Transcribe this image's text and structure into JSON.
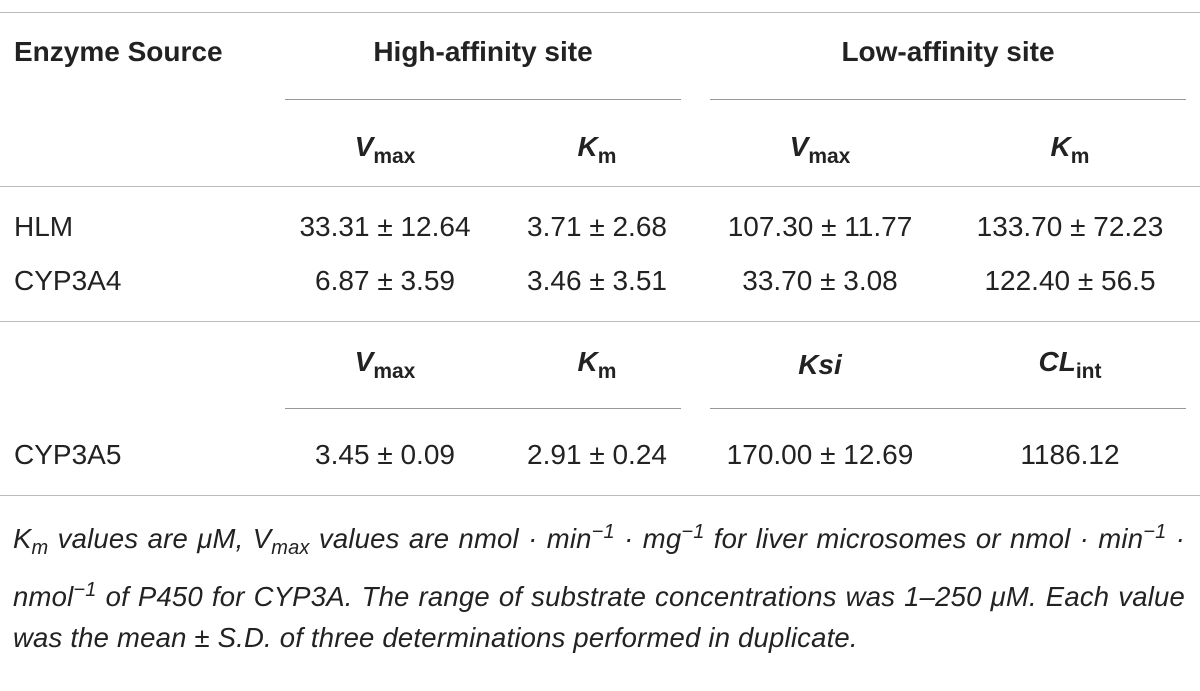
{
  "table": {
    "header": {
      "enzyme_source": "Enzyme Source",
      "groups": [
        "High-affinity site",
        "Low-affinity site"
      ]
    },
    "sections": [
      {
        "subheader": [
          {
            "main": "V",
            "sub": "max"
          },
          {
            "main": "K",
            "sub": "m"
          },
          {
            "main": "V",
            "sub": "max"
          },
          {
            "main": "K",
            "sub": "m"
          }
        ],
        "rows": [
          [
            "HLM",
            "33.31 ± 12.64",
            "3.71 ± 2.68",
            "107.30 ± 11.77",
            "133.70 ± 72.23"
          ],
          [
            "CYP3A4",
            "6.87 ± 3.59",
            "3.46 ± 3.51",
            "33.70 ± 3.08",
            "122.40 ± 56.5"
          ]
        ]
      },
      {
        "subheader": [
          {
            "main": "V",
            "sub": "max"
          },
          {
            "main": "K",
            "sub": "m"
          },
          {
            "main": "Ksi"
          },
          {
            "main": "CL",
            "sub": "int"
          }
        ],
        "rows": [
          [
            "CYP3A5",
            "3.45 ± 0.09",
            "2.91 ± 0.24",
            "170.00 ± 12.69",
            "1186.12"
          ]
        ]
      }
    ]
  },
  "footnote": [
    {
      "text": "K"
    },
    {
      "text": "m",
      "pos": "sub"
    },
    {
      "text": " values are μM, V"
    },
    {
      "text": "max",
      "pos": "sub"
    },
    {
      "text": " values are nmol · min"
    },
    {
      "text": "−1",
      "pos": "sup"
    },
    {
      "text": " · mg"
    },
    {
      "text": "−1",
      "pos": "sup"
    },
    {
      "text": " for liver microsomes or nmol · min"
    },
    {
      "text": "−1",
      "pos": "sup"
    },
    {
      "text": " · nmol"
    },
    {
      "text": "−1",
      "pos": "sup"
    },
    {
      "text": " of P450 for CYP3A. The range of substrate concentrations was 1–250 μM. Each value was the mean ± S.D. of three determinations performed in duplicate."
    }
  ]
}
